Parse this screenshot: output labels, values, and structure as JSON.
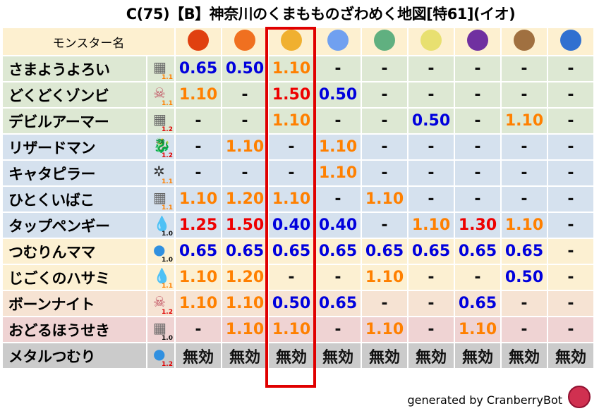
{
  "title": "C(75)【B】神奈川のくまもものざわめく地図[特61](イオ)",
  "header": {
    "name_label": "モンスター名",
    "elements": [
      {
        "icon": "mera-fireball-icon",
        "color": "#e04010"
      },
      {
        "icon": "gira-flame-icon",
        "color": "#f07020"
      },
      {
        "icon": "io-explosion-icon",
        "color": "#f0b030"
      },
      {
        "icon": "hyado-ice-icon",
        "color": "#70a0f0"
      },
      {
        "icon": "bagi-tornado-icon",
        "color": "#60b080"
      },
      {
        "icon": "dein-lightning-icon",
        "color": "#e8e070"
      },
      {
        "icon": "doruma-dark-icon",
        "color": "#7030a0"
      },
      {
        "icon": "jibaria-earth-icon",
        "color": "#a07040"
      },
      {
        "icon": "water-wave-icon",
        "color": "#3070d0"
      }
    ]
  },
  "colors": {
    "low": "#0000dd",
    "mid": "#ff8000",
    "high": "#ee0000",
    "highlight_frame": "#e00000"
  },
  "rows": [
    {
      "name": "さまようよろい",
      "icon": "brick-wall-icon",
      "badge": "1.1",
      "bg": "#dde8d3",
      "values": [
        "0.65",
        "0.50",
        "1.10",
        "-",
        "-",
        "-",
        "-",
        "-",
        "-"
      ]
    },
    {
      "name": "どくどくゾンビ",
      "icon": "skull-icon",
      "badge": "1.1",
      "bg": "#dde8d3",
      "values": [
        "1.10",
        "-",
        "1.50",
        "0.50",
        "-",
        "-",
        "-",
        "-",
        "-"
      ]
    },
    {
      "name": "デビルアーマー",
      "icon": "brick-wall-icon",
      "badge": "1.2",
      "bg": "#dde8d3",
      "values": [
        "-",
        "-",
        "1.10",
        "-",
        "-",
        "0.50",
        "-",
        "1.10",
        "-"
      ]
    },
    {
      "name": "リザードマン",
      "icon": "dragon-icon",
      "badge": "1.2",
      "bg": "#d5e1ee",
      "values": [
        "-",
        "1.10",
        "-",
        "1.10",
        "-",
        "-",
        "-",
        "-",
        "-"
      ]
    },
    {
      "name": "キャタピラー",
      "icon": "insect-icon",
      "badge": "1.1",
      "bg": "#d5e1ee",
      "values": [
        "-",
        "-",
        "-",
        "1.10",
        "-",
        "-",
        "-",
        "-",
        "-"
      ]
    },
    {
      "name": "ひとくいばこ",
      "icon": "brick-wall-icon",
      "badge": "1.1",
      "bg": "#d5e1ee",
      "values": [
        "1.10",
        "1.20",
        "1.10",
        "-",
        "1.10",
        "-",
        "-",
        "-",
        "-"
      ]
    },
    {
      "name": "タップペンギー",
      "icon": "water-drop-icon",
      "badge": "1.0",
      "bg": "#d5e1ee",
      "values": [
        "1.25",
        "1.50",
        "0.40",
        "0.40",
        "-",
        "1.10",
        "1.30",
        "1.10",
        "-"
      ]
    },
    {
      "name": "つむりんママ",
      "icon": "slime-icon",
      "badge": "1.0",
      "bg": "#fcf0d2",
      "values": [
        "0.65",
        "0.65",
        "0.65",
        "0.65",
        "0.65",
        "0.65",
        "0.65",
        "0.65",
        "-"
      ]
    },
    {
      "name": "じごくのハサミ",
      "icon": "water-drop-icon",
      "badge": "1.1",
      "bg": "#fcf0d2",
      "values": [
        "1.10",
        "1.20",
        "-",
        "-",
        "1.10",
        "-",
        "-",
        "0.50",
        "-"
      ]
    },
    {
      "name": "ボーンナイト",
      "icon": "skull-icon",
      "badge": "1.2",
      "bg": "#f6e3d3",
      "values": [
        "1.10",
        "1.10",
        "0.50",
        "0.65",
        "-",
        "-",
        "0.65",
        "-",
        "-"
      ]
    },
    {
      "name": "おどるほうせき",
      "icon": "brick-wall-icon",
      "badge": "1.0",
      "bg": "#efd3d3",
      "values": [
        "-",
        "1.10",
        "1.10",
        "-",
        "1.10",
        "-",
        "1.10",
        "-",
        "-"
      ]
    },
    {
      "name": "メタルつむり",
      "icon": "slime-icon",
      "badge": "1.2",
      "bg": "#cbcbcb",
      "values": [
        "無効",
        "無効",
        "無効",
        "無効",
        "無効",
        "無効",
        "無効",
        "無効",
        "無効"
      ]
    }
  ],
  "footer": "generated by CranberryBot"
}
